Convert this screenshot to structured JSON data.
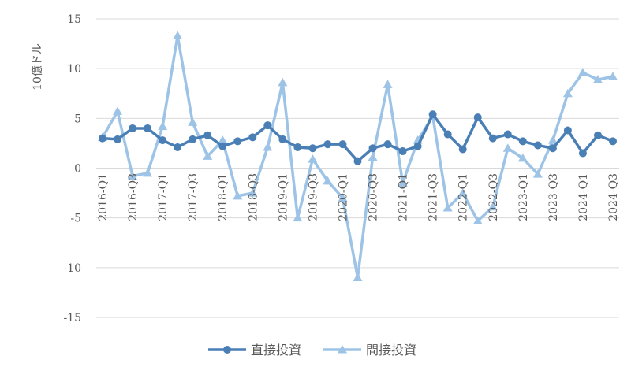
{
  "chart_data": {
    "type": "line",
    "title": "",
    "xlabel": "",
    "ylabel": "10億ドル",
    "ylim": [
      -15,
      15
    ],
    "yticks": [
      15,
      10,
      5,
      0,
      -5,
      -10,
      -15
    ],
    "grid": true,
    "legend_position": "bottom",
    "categories": [
      "2016-Q1",
      "2016-Q2",
      "2016-Q3",
      "2016-Q4",
      "2017-Q1",
      "2017-Q2",
      "2017-Q3",
      "2017-Q4",
      "2018-Q1",
      "2018-Q2",
      "2018-Q3",
      "2018-Q4",
      "2019-Q1",
      "2019-Q2",
      "2019-Q3",
      "2019-Q4",
      "2020-Q1",
      "2020-Q2",
      "2020-Q3",
      "2020-Q4",
      "2021-Q1",
      "2021-Q2",
      "2021-Q3",
      "2021-Q4",
      "2022-Q1",
      "2022-Q2",
      "2022-Q3",
      "2022-Q4",
      "2023-Q1",
      "2023-Q2",
      "2023-Q3",
      "2023-Q4",
      "2024-Q1",
      "2024-Q2",
      "2024-Q3"
    ],
    "tick_labels": [
      "2016-Q1",
      "2016-Q3",
      "2017-Q1",
      "2017-Q3",
      "2018-Q1",
      "2018-Q3",
      "2019-Q1",
      "2019-Q3",
      "2020-Q1",
      "2020-Q3",
      "2021-Q1",
      "2021-Q3",
      "2022-Q1",
      "2022-Q3",
      "2023-Q1",
      "2023-Q3",
      "2024-Q1",
      "2024-Q3"
    ],
    "series": [
      {
        "name": "直接投資",
        "color": "#4a7fb5",
        "marker": "circle",
        "values": [
          3.0,
          2.9,
          4.0,
          4.0,
          2.8,
          2.1,
          2.9,
          3.3,
          2.2,
          2.7,
          3.1,
          4.3,
          2.9,
          2.1,
          2.0,
          2.4,
          2.4,
          0.7,
          2.0,
          2.4,
          1.7,
          2.2,
          5.4,
          3.4,
          1.9,
          5.1,
          3.0,
          3.4,
          2.7,
          2.3,
          2.0,
          3.8,
          1.5,
          3.3,
          2.7
        ]
      },
      {
        "name": "間接投資",
        "color": "#9dc3e6",
        "marker": "triangle",
        "values": [
          3.1,
          5.7,
          -0.8,
          -0.5,
          4.2,
          13.3,
          4.6,
          1.2,
          2.8,
          -2.8,
          -2.5,
          2.1,
          8.6,
          -5.0,
          0.9,
          -1.3,
          -3.0,
          -11.0,
          1.1,
          8.4,
          -1.5,
          2.8,
          5.2,
          -4.0,
          -2.5,
          -5.3,
          -3.9,
          2.0,
          1.0,
          -0.6,
          2.8,
          7.5,
          9.6,
          8.9,
          9.2
        ]
      }
    ]
  }
}
